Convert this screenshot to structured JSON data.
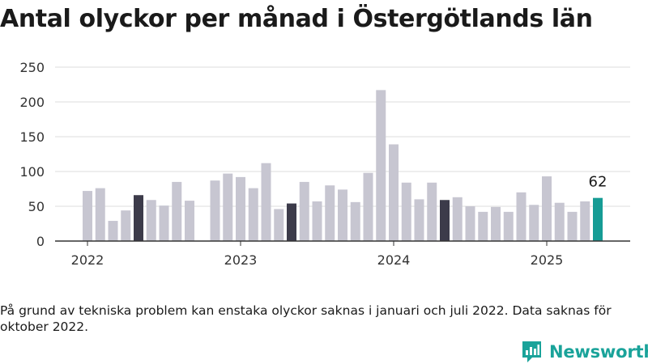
{
  "title": "Antal olyckor per månad i Östergötlands län",
  "footnote": "På grund av tekniska problem kan enstaka olyckor saknas i januari och juli 2022. Data saknas för oktober 2022.",
  "brand": {
    "name": "Newsworthy"
  },
  "colors": {
    "default": "#c7c6d1",
    "may": "#3c3b4a",
    "latest": "#169c95",
    "brand": "#1aa39a",
    "grid": "#dcdcdc",
    "axis": "#333333"
  },
  "chart_data": {
    "type": "bar",
    "title": "Antal olyckor per månad i Östergötlands län",
    "xlabel": "",
    "ylabel": "",
    "ylim": [
      0,
      250
    ],
    "yticks": [
      0,
      50,
      100,
      150,
      200,
      250
    ],
    "x_tick_labels": [
      "2022",
      "2023",
      "2024",
      "2025"
    ],
    "grid": true,
    "annotation": {
      "month": "2025-05",
      "text": "62"
    },
    "categories": [
      "2022-01",
      "2022-02",
      "2022-03",
      "2022-04",
      "2022-05",
      "2022-06",
      "2022-07",
      "2022-08",
      "2022-09",
      "2022-10",
      "2022-11",
      "2022-12",
      "2023-01",
      "2023-02",
      "2023-03",
      "2023-04",
      "2023-05",
      "2023-06",
      "2023-07",
      "2023-08",
      "2023-09",
      "2023-10",
      "2023-11",
      "2023-12",
      "2024-01",
      "2024-02",
      "2024-03",
      "2024-04",
      "2024-05",
      "2024-06",
      "2024-07",
      "2024-08",
      "2024-09",
      "2024-10",
      "2024-11",
      "2024-12",
      "2025-01",
      "2025-02",
      "2025-03",
      "2025-04",
      "2025-05"
    ],
    "values": [
      72,
      76,
      29,
      44,
      66,
      59,
      51,
      85,
      58,
      null,
      87,
      97,
      92,
      76,
      112,
      46,
      54,
      85,
      57,
      80,
      74,
      56,
      98,
      217,
      139,
      84,
      60,
      84,
      59,
      63,
      50,
      42,
      49,
      42,
      70,
      52,
      93,
      55,
      42,
      57,
      62
    ],
    "highlight": {
      "2022-05": "may",
      "2023-05": "may",
      "2024-05": "may",
      "2025-05": "latest"
    }
  }
}
